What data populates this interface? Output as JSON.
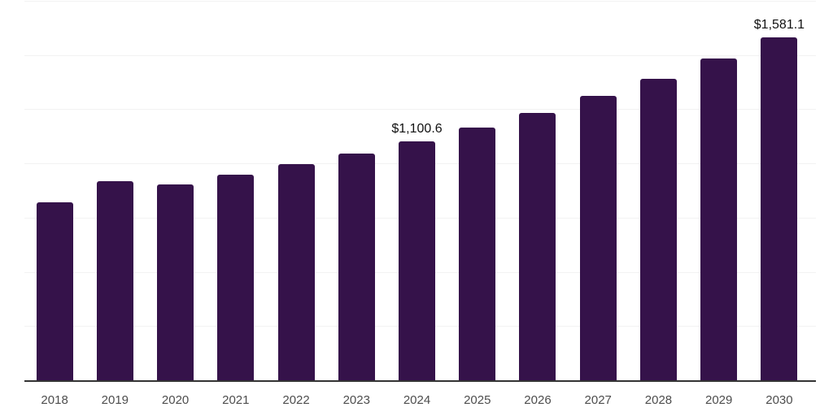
{
  "chart": {
    "background_color": "#ffffff",
    "bar_color": "#35124a",
    "gridline_color": "#f2f2f2",
    "axis_line_color": "#333333",
    "tick_label_color": "#4d4d4d",
    "value_label_color": "#111111"
  },
  "chart_data": {
    "type": "bar",
    "title": "",
    "xlabel": "",
    "ylabel": "",
    "categories": [
      "2018",
      "2019",
      "2020",
      "2021",
      "2022",
      "2023",
      "2024",
      "2025",
      "2026",
      "2027",
      "2028",
      "2029",
      "2030"
    ],
    "values": [
      820,
      920,
      905,
      950,
      998,
      1047,
      1100.6,
      1166,
      1233,
      1311,
      1389,
      1483,
      1581.1
    ],
    "value_prefix": "$",
    "data_labels": {
      "2024": "$1,100.6",
      "2030": "$1,581.1"
    },
    "ylim": [
      0,
      1750
    ],
    "grid_step": 250,
    "grid": "horizontal",
    "y_axis_labels_visible": false,
    "legend_position": "none"
  }
}
